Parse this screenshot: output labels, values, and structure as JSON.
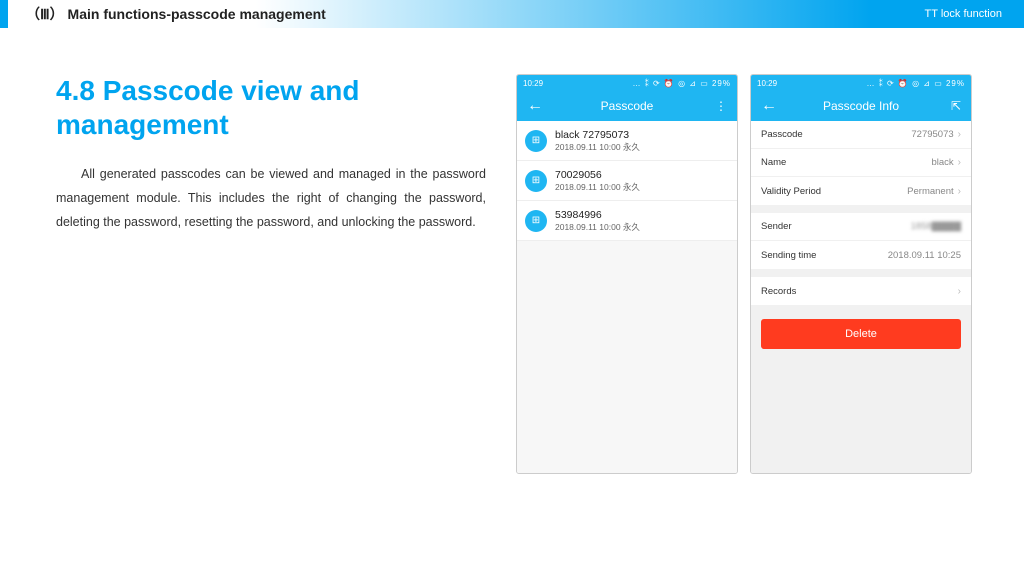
{
  "header": {
    "section_num": "（Ⅲ）",
    "section_title": "Main functions-passcode management",
    "right_label": "TT lock function"
  },
  "text": {
    "title": "4.8 Passcode view and management",
    "body": "All generated passcodes can be viewed and managed in the password management module. This includes the right of changing the password, deleting the password, resetting the password, and unlocking the password."
  },
  "status": {
    "time": "10:29",
    "icons": "… ⁑ ⟳ ⏰ ◎ ⊿ ▭ 29%"
  },
  "phone1": {
    "title": "Passcode",
    "menu_glyph": "⋮",
    "items": [
      {
        "title": "black  72795073",
        "sub": "2018.09.11 10:00  永久"
      },
      {
        "title": "70029056",
        "sub": "2018.09.11 10:00  永久"
      },
      {
        "title": "53984996",
        "sub": "2018.09.11 10:00  永久"
      }
    ]
  },
  "phone2": {
    "title": "Passcode Info",
    "share_glyph": "⇱",
    "rows1": [
      {
        "label": "Passcode",
        "value": "72795073",
        "chev": true
      },
      {
        "label": "Name",
        "value": "black",
        "chev": true
      },
      {
        "label": "Validity Period",
        "value": "Permanent",
        "chev": true
      }
    ],
    "rows2": [
      {
        "label": "Sender",
        "value": "1858▇▇▇▇",
        "blur": true
      },
      {
        "label": "Sending time",
        "value": "2018.09.11 10:25"
      }
    ],
    "rows3": [
      {
        "label": "Records",
        "value": "",
        "chev": true
      }
    ],
    "delete_label": "Delete"
  },
  "colors": {
    "accent": "#00a4ef",
    "phone_accent": "#1fb6f2",
    "delete": "#ff3b1f"
  }
}
